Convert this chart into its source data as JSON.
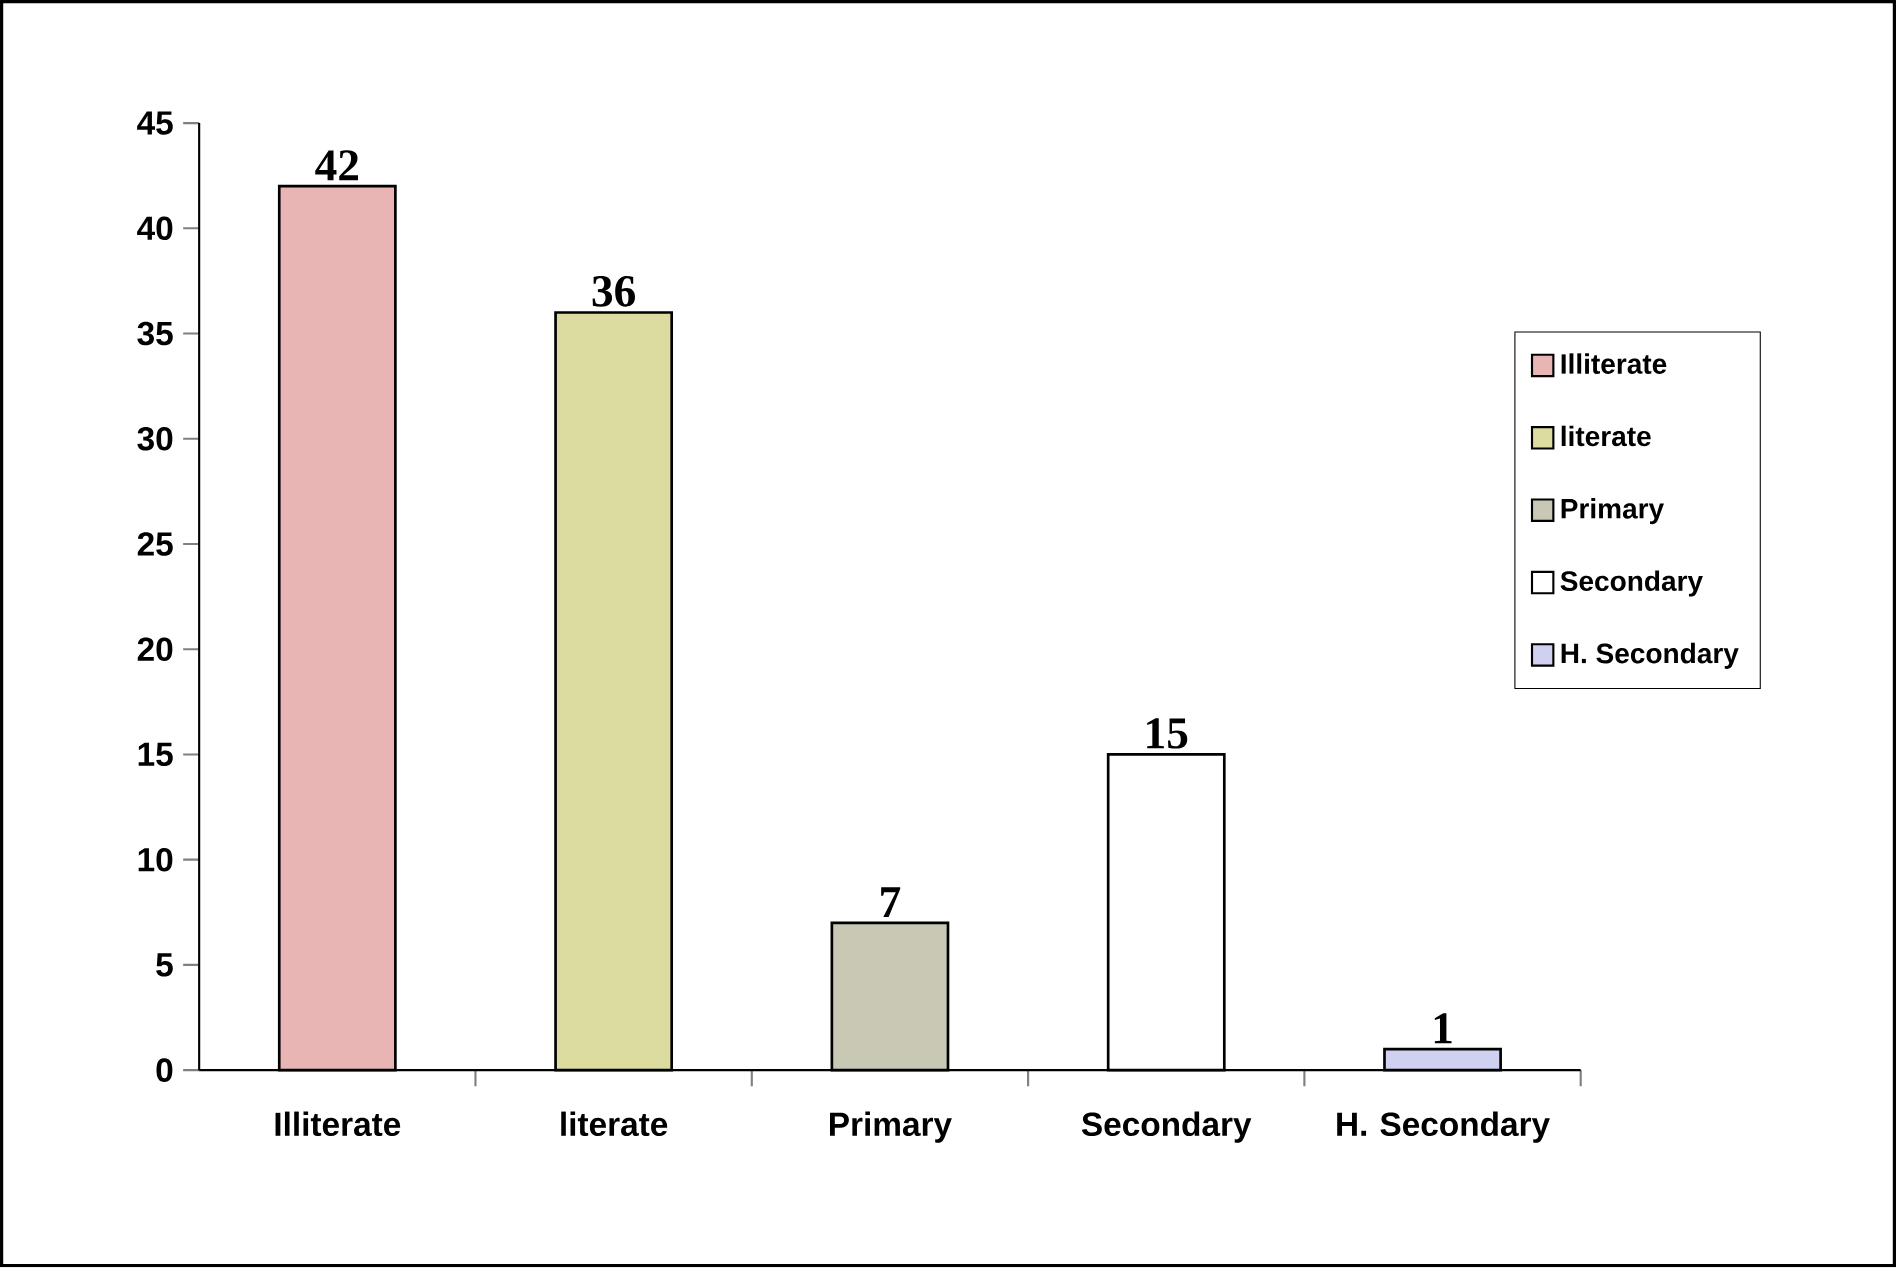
{
  "chart_data": {
    "type": "bar",
    "categories": [
      "Illiterate",
      "literate",
      "Primary",
      "Secondary",
      "H. Secondary"
    ],
    "series": [
      {
        "name": "Illiterate",
        "color": "#e8b4b4",
        "values": [
          42,
          null,
          null,
          null,
          null
        ]
      },
      {
        "name": "literate",
        "color": "#dcdca0",
        "values": [
          null,
          36,
          null,
          null,
          null
        ]
      },
      {
        "name": "Primary",
        "color": "#c8c8b4",
        "values": [
          null,
          null,
          7,
          null,
          null
        ]
      },
      {
        "name": "Secondary",
        "color": "#ffffff",
        "values": [
          null,
          null,
          null,
          15,
          null
        ]
      },
      {
        "name": "H. Secondary",
        "color": "#d0d0f0",
        "values": [
          null,
          null,
          null,
          null,
          1
        ]
      }
    ],
    "ylim": [
      0,
      45
    ],
    "yticks": [
      0,
      5,
      10,
      15,
      20,
      25,
      30,
      35,
      40,
      45
    ],
    "data_labels": true,
    "legend": "right"
  }
}
